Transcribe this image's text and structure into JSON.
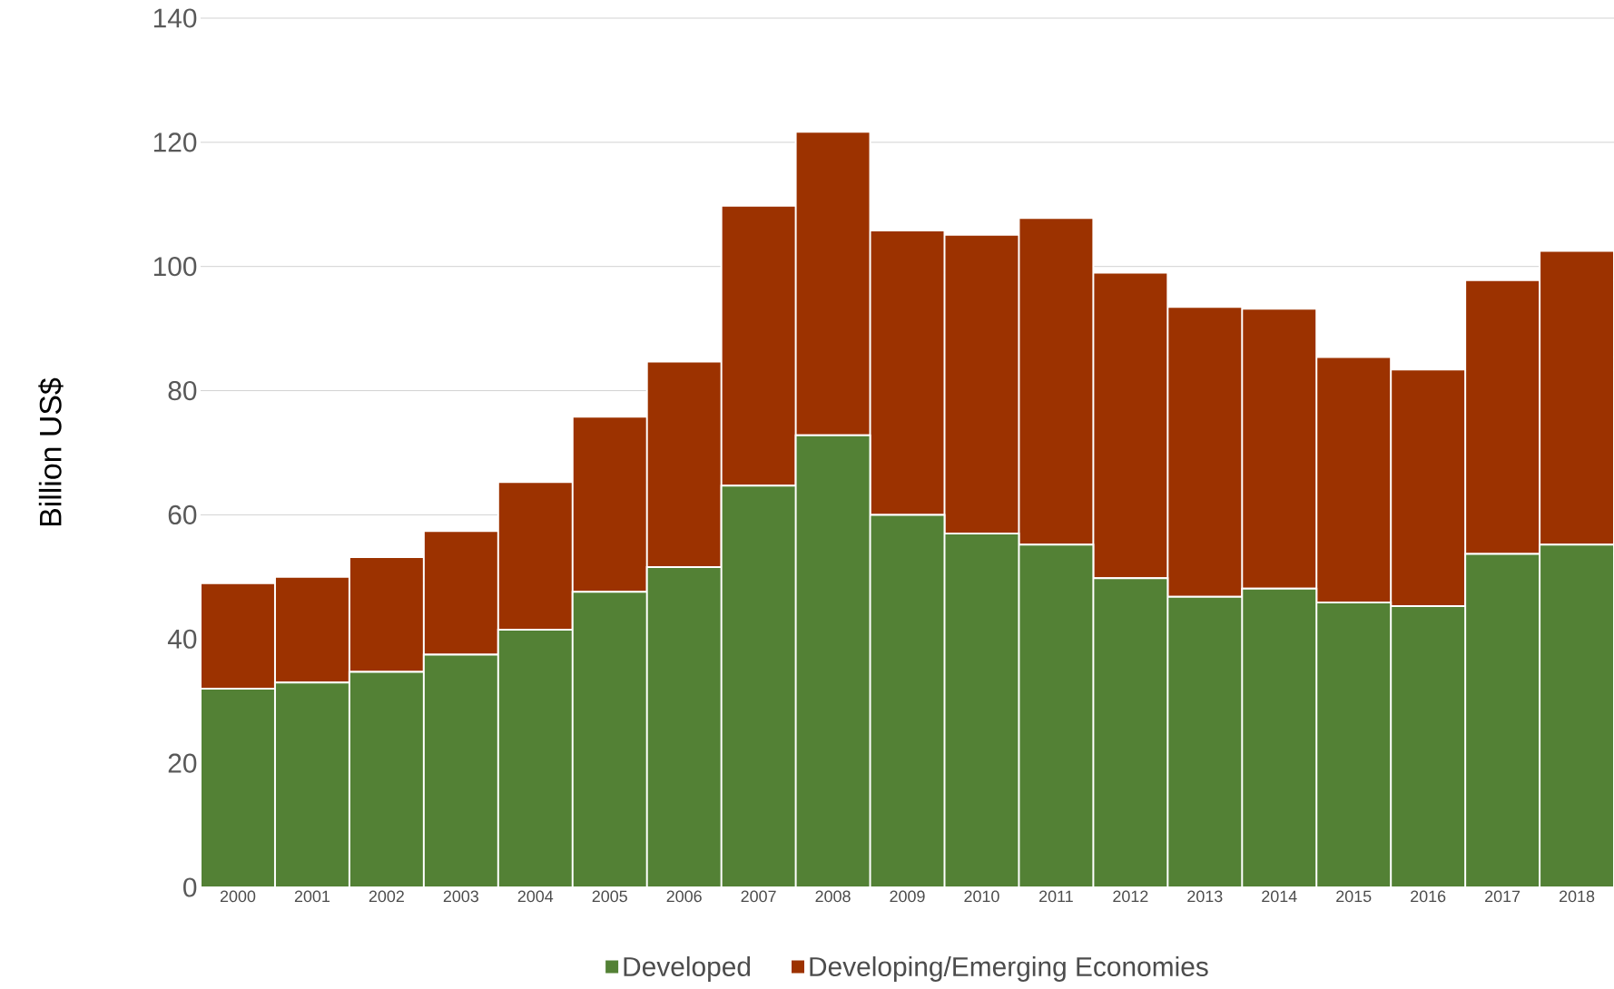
{
  "chart_data": {
    "type": "bar",
    "stacked": true,
    "ylabel": "Billion US$",
    "categories": [
      "2000",
      "2001",
      "2002",
      "2003",
      "2004",
      "2005",
      "2006",
      "2007",
      "2008",
      "2009",
      "2010",
      "2011",
      "2012",
      "2013",
      "2014",
      "2015",
      "2016",
      "2017",
      "2018"
    ],
    "series": [
      {
        "name": "Developed",
        "color": "#538135",
        "values": [
          32,
          33,
          34.7,
          37.5,
          41.5,
          47.6,
          51.6,
          64.7,
          72.8,
          60.0,
          57.0,
          55.2,
          49.8,
          46.8,
          48.1,
          45.9,
          45.3,
          53.7,
          55.2
        ]
      },
      {
        "name": "Developing/Emerging Economies",
        "color": "#9c3200",
        "values": [
          17,
          17,
          18.5,
          19.9,
          23.8,
          28.2,
          33.1,
          45.1,
          48.9,
          45.8,
          48.1,
          52.6,
          49.2,
          46.7,
          45.1,
          39.5,
          38.1,
          44.1,
          47.3
        ]
      }
    ],
    "ylim": [
      0,
      140
    ],
    "yticks": [
      0,
      20,
      40,
      60,
      80,
      100,
      120,
      140
    ],
    "grid": "y",
    "legend": "bottom"
  }
}
